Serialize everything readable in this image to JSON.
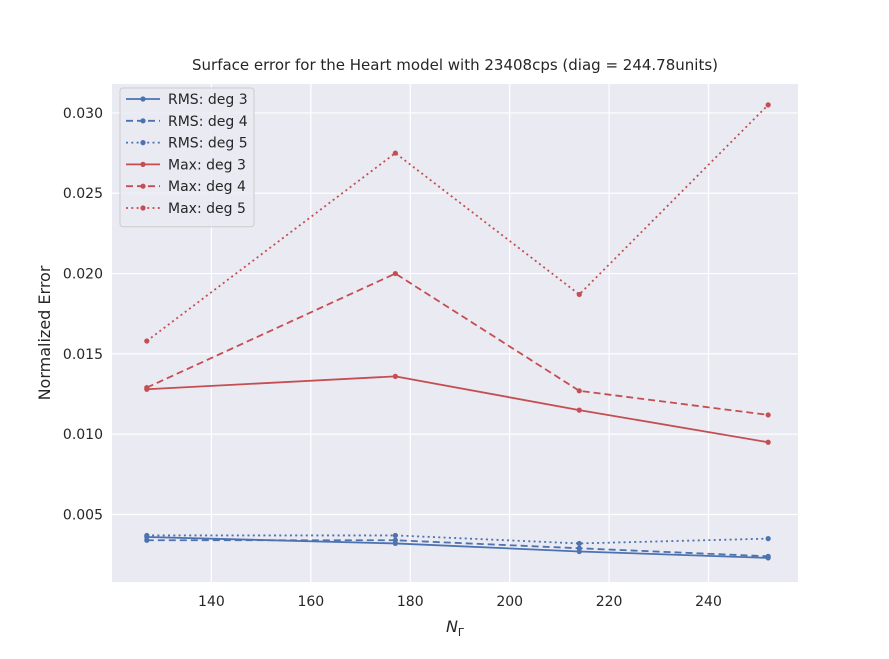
{
  "chart_data": {
    "type": "line",
    "title": "Surface error for the Heart model with 23408cps (diag = 244.78units)",
    "xlabel": "N",
    "xlabel_sub": "Γ",
    "ylabel": "Normalized Error",
    "x": [
      127,
      177,
      214,
      252
    ],
    "xlim": [
      120,
      258
    ],
    "ylim": [
      0.0008,
      0.0318
    ],
    "xticks": [
      140,
      160,
      180,
      200,
      220,
      240
    ],
    "xtick_labels": [
      "140",
      "160",
      "180",
      "200",
      "220",
      "240"
    ],
    "yticks": [
      0.005,
      0.01,
      0.015,
      0.02,
      0.025,
      0.03
    ],
    "ytick_labels": [
      "0.005",
      "0.010",
      "0.015",
      "0.020",
      "0.025",
      "0.030"
    ],
    "grid": true,
    "legend_position": "top-left",
    "colors": {
      "rms": "#4c72b0",
      "max": "#c44e52",
      "background": "#eaeaf2",
      "grid": "#ffffff"
    },
    "series": [
      {
        "name": "RMS: deg 3",
        "color": "#4c72b0",
        "dash": "solid",
        "values": [
          0.0036,
          0.0032,
          0.0027,
          0.0023
        ]
      },
      {
        "name": "RMS: deg 4",
        "color": "#4c72b0",
        "dash": "dashed",
        "values": [
          0.0034,
          0.0034,
          0.0029,
          0.0024
        ]
      },
      {
        "name": "RMS: deg 5",
        "color": "#4c72b0",
        "dash": "dotted",
        "values": [
          0.0037,
          0.0037,
          0.0032,
          0.0035
        ]
      },
      {
        "name": "Max: deg 3",
        "color": "#c44e52",
        "dash": "solid",
        "values": [
          0.0128,
          0.0136,
          0.0115,
          0.0095
        ]
      },
      {
        "name": "Max: deg 4",
        "color": "#c44e52",
        "dash": "dashed",
        "values": [
          0.0129,
          0.02,
          0.0127,
          0.0112
        ]
      },
      {
        "name": "Max: deg 5",
        "color": "#c44e52",
        "dash": "dotted",
        "values": [
          0.0158,
          0.0275,
          0.0187,
          0.0305
        ]
      }
    ]
  }
}
